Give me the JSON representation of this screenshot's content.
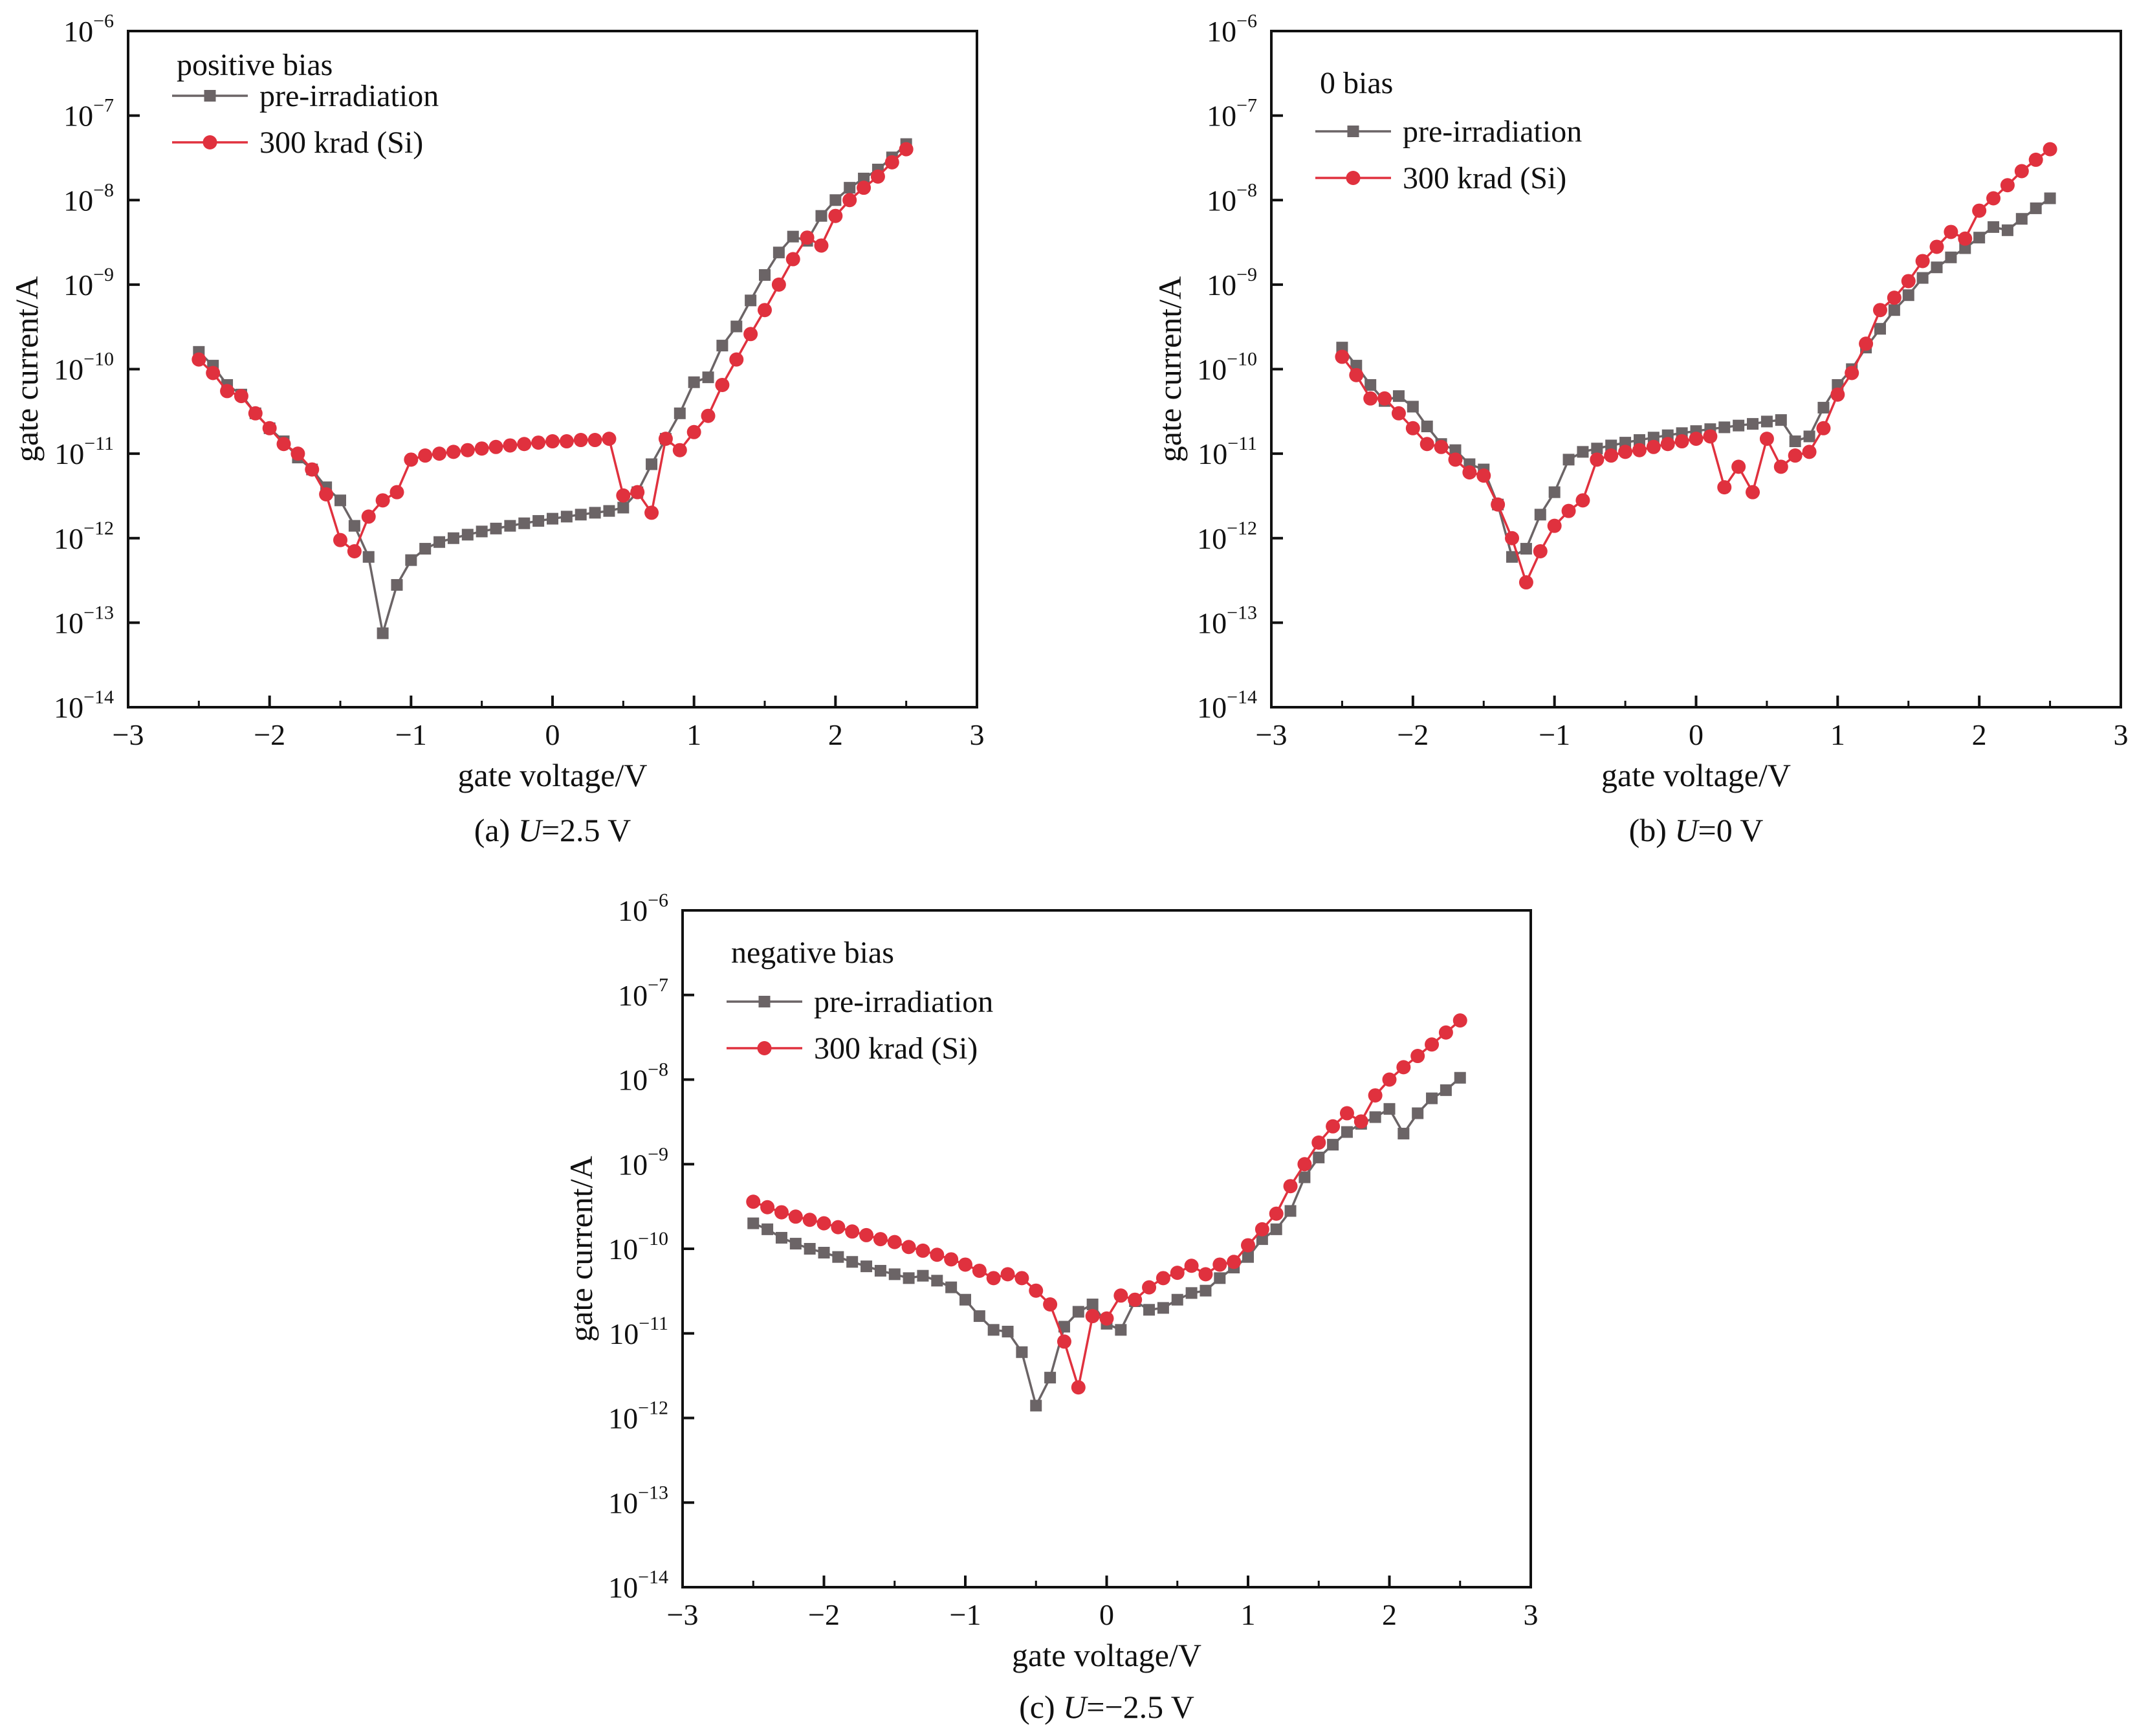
{
  "figure": {
    "x_axis_label": "gate voltage/V",
    "y_axis_label": "gate current/A"
  },
  "legend": {
    "series_names": [
      "pre-irradiation",
      "300 krad (Si)"
    ]
  },
  "colors": {
    "pre_irradiation": "#6b6466",
    "irradiated": "#e0313e",
    "axis": "#111111"
  },
  "marker_shapes": {
    "pre_irradiation": "square",
    "irradiated": "circle"
  },
  "chart_data": [
    {
      "type": "line",
      "panel": "a",
      "annotation": "positive bias",
      "caption": {
        "prefix": "(a) ",
        "var": "U",
        "suffix": "=2.5 V"
      },
      "xlabel": "gate voltage/V",
      "ylabel": "gate current/A",
      "xlim": [
        -3,
        3
      ],
      "ylim": [
        1e-14,
        1e-06
      ],
      "yscale": "log",
      "xticks": [
        "−3",
        "−2",
        "−1",
        "0",
        "1",
        "2",
        "3"
      ],
      "yticks_exponent": [
        "−14",
        "−13",
        "−12",
        "−11",
        "−10",
        "−9",
        "−8",
        "−7",
        "−6"
      ],
      "yticks_base": "10",
      "legend_position": "top-left",
      "grid": false,
      "series": [
        {
          "name": "pre-irradiation",
          "x": [
            -2.5,
            -2.4,
            -2.3,
            -2.2,
            -2.1,
            -2.0,
            -1.9,
            -1.8,
            -1.7,
            -1.6,
            -1.5,
            -1.4,
            -1.3,
            -1.2,
            -1.1,
            -1.0,
            -0.9,
            -0.8,
            -0.7,
            -0.6,
            -0.5,
            -0.4,
            -0.3,
            -0.2,
            -0.1,
            0.0,
            0.1,
            0.2,
            0.3,
            0.4,
            0.5,
            0.6,
            0.7,
            0.8,
            0.9,
            1.0,
            1.1,
            1.2,
            1.3,
            1.4,
            1.5,
            1.6,
            1.7,
            1.8,
            1.9,
            2.0,
            2.1,
            2.2,
            2.3,
            2.4,
            2.5
          ],
          "y": [
            1.6e-10,
            1.1e-10,
            6.5e-11,
            5e-11,
            3e-11,
            2e-11,
            1.4e-11,
            9e-12,
            6.5e-12,
            4e-12,
            2.8e-12,
            1.4e-12,
            6e-13,
            7.5e-14,
            2.8e-13,
            5.5e-13,
            7.5e-13,
            9e-13,
            1e-12,
            1.1e-12,
            1.2e-12,
            1.3e-12,
            1.4e-12,
            1.5e-12,
            1.6e-12,
            1.7e-12,
            1.8e-12,
            1.9e-12,
            2e-12,
            2.1e-12,
            2.3e-12,
            3.5e-12,
            7.5e-12,
            1.5e-11,
            3e-11,
            7e-11,
            8e-11,
            1.9e-10,
            3.2e-10,
            6.5e-10,
            1.3e-09,
            2.4e-09,
            3.7e-09,
            3.3e-09,
            6.5e-09,
            1e-08,
            1.4e-08,
            1.8e-08,
            2.3e-08,
            3.2e-08,
            4.6e-08
          ]
        },
        {
          "name": "300 krad (Si)",
          "x": [
            -2.5,
            -2.4,
            -2.3,
            -2.2,
            -2.1,
            -2.0,
            -1.9,
            -1.8,
            -1.7,
            -1.6,
            -1.5,
            -1.4,
            -1.3,
            -1.2,
            -1.1,
            -1.0,
            -0.9,
            -0.8,
            -0.7,
            -0.6,
            -0.5,
            -0.4,
            -0.3,
            -0.2,
            -0.1,
            0.0,
            0.1,
            0.2,
            0.3,
            0.4,
            0.5,
            0.6,
            0.7,
            0.8,
            0.9,
            1.0,
            1.1,
            1.2,
            1.3,
            1.4,
            1.5,
            1.6,
            1.7,
            1.8,
            1.9,
            2.0,
            2.1,
            2.2,
            2.3,
            2.4,
            2.5
          ],
          "y": [
            1.3e-10,
            9e-11,
            5.5e-11,
            4.8e-11,
            3e-11,
            2e-11,
            1.3e-11,
            1e-11,
            6.5e-12,
            3.3e-12,
            9.5e-13,
            7e-13,
            1.8e-12,
            2.8e-12,
            3.5e-12,
            8.5e-12,
            9.5e-12,
            1e-11,
            1.05e-11,
            1.1e-11,
            1.15e-11,
            1.2e-11,
            1.25e-11,
            1.3e-11,
            1.35e-11,
            1.4e-11,
            1.4e-11,
            1.45e-11,
            1.45e-11,
            1.5e-11,
            3.2e-12,
            3.5e-12,
            2e-12,
            1.5e-11,
            1.1e-11,
            1.8e-11,
            2.8e-11,
            6.5e-11,
            1.3e-10,
            2.6e-10,
            5e-10,
            1e-09,
            2e-09,
            3.6e-09,
            2.9e-09,
            6.5e-09,
            1e-08,
            1.4e-08,
            1.9e-08,
            2.8e-08,
            4e-08
          ]
        }
      ]
    },
    {
      "type": "line",
      "panel": "b",
      "annotation": "0 bias",
      "caption": {
        "prefix": "(b) ",
        "var": "U",
        "suffix": "=0 V"
      },
      "xlabel": "gate voltage/V",
      "ylabel": "gate current/A",
      "xlim": [
        -3,
        3
      ],
      "ylim": [
        1e-14,
        1e-06
      ],
      "yscale": "log",
      "xticks": [
        "−3",
        "−2",
        "−1",
        "0",
        "1",
        "2",
        "3"
      ],
      "yticks_exponent": [
        "−14",
        "−13",
        "−12",
        "−11",
        "−10",
        "−9",
        "−8",
        "−7",
        "−6"
      ],
      "yticks_base": "10",
      "legend_position": "top-left",
      "grid": false,
      "series": [
        {
          "name": "pre-irradiation",
          "x": [
            -2.5,
            -2.4,
            -2.3,
            -2.2,
            -2.1,
            -2.0,
            -1.9,
            -1.8,
            -1.7,
            -1.6,
            -1.5,
            -1.4,
            -1.3,
            -1.2,
            -1.1,
            -1.0,
            -0.9,
            -0.8,
            -0.7,
            -0.6,
            -0.5,
            -0.4,
            -0.3,
            -0.2,
            -0.1,
            0.0,
            0.1,
            0.2,
            0.3,
            0.4,
            0.5,
            0.6,
            0.7,
            0.8,
            0.9,
            1.0,
            1.1,
            1.2,
            1.3,
            1.4,
            1.5,
            1.6,
            1.7,
            1.8,
            1.9,
            2.0,
            2.1,
            2.2,
            2.3,
            2.4,
            2.5
          ],
          "y": [
            1.8e-10,
            1.1e-10,
            6.5e-11,
            4.2e-11,
            4.8e-11,
            3.6e-11,
            2.1e-11,
            1.3e-11,
            1.1e-11,
            7.5e-12,
            6.5e-12,
            2.5e-12,
            6e-13,
            7.5e-13,
            1.9e-12,
            3.5e-12,
            8.5e-12,
            1.05e-11,
            1.15e-11,
            1.25e-11,
            1.35e-11,
            1.45e-11,
            1.55e-11,
            1.65e-11,
            1.75e-11,
            1.85e-11,
            1.95e-11,
            2.05e-11,
            2.15e-11,
            2.25e-11,
            2.4e-11,
            2.5e-11,
            1.4e-11,
            1.6e-11,
            3.5e-11,
            6.5e-11,
            1e-10,
            1.8e-10,
            3e-10,
            5e-10,
            7.5e-10,
            1.2e-09,
            1.6e-09,
            2.1e-09,
            2.7e-09,
            3.6e-09,
            4.8e-09,
            4.4e-09,
            6e-09,
            8e-09,
            1.05e-08
          ]
        },
        {
          "name": "300 krad (Si)",
          "x": [
            -2.5,
            -2.4,
            -2.3,
            -2.2,
            -2.1,
            -2.0,
            -1.9,
            -1.8,
            -1.7,
            -1.6,
            -1.5,
            -1.4,
            -1.3,
            -1.2,
            -1.1,
            -1.0,
            -0.9,
            -0.8,
            -0.7,
            -0.6,
            -0.5,
            -0.4,
            -0.3,
            -0.2,
            -0.1,
            0.0,
            0.1,
            0.2,
            0.3,
            0.4,
            0.5,
            0.6,
            0.7,
            0.8,
            0.9,
            1.0,
            1.1,
            1.2,
            1.3,
            1.4,
            1.5,
            1.6,
            1.7,
            1.8,
            1.9,
            2.0,
            2.1,
            2.2,
            2.3,
            2.4,
            2.5
          ],
          "y": [
            1.4e-10,
            8.5e-11,
            4.5e-11,
            4.5e-11,
            3e-11,
            2e-11,
            1.3e-11,
            1.2e-11,
            8.5e-12,
            6e-12,
            5.5e-12,
            2.5e-12,
            1e-12,
            3e-13,
            7e-13,
            1.4e-12,
            2.1e-12,
            2.8e-12,
            8.5e-12,
            9.5e-12,
            1.05e-11,
            1.1e-11,
            1.2e-11,
            1.3e-11,
            1.4e-11,
            1.5e-11,
            1.6e-11,
            4e-12,
            7e-12,
            3.5e-12,
            1.5e-11,
            7e-12,
            9.5e-12,
            1.05e-11,
            2e-11,
            5e-11,
            9e-11,
            2e-10,
            5e-10,
            7e-10,
            1.1e-09,
            1.9e-09,
            2.8e-09,
            4.2e-09,
            3.5e-09,
            7.5e-09,
            1.05e-08,
            1.5e-08,
            2.2e-08,
            3e-08,
            4e-08
          ]
        }
      ]
    },
    {
      "type": "line",
      "panel": "c",
      "annotation": "negative bias",
      "caption": {
        "prefix": "(c) ",
        "var": "U",
        "suffix": "=−2.5 V"
      },
      "xlabel": "gate voltage/V",
      "ylabel": "gate current/A",
      "xlim": [
        -3,
        3
      ],
      "ylim": [
        1e-14,
        1e-06
      ],
      "yscale": "log",
      "xticks": [
        "−3",
        "−2",
        "−1",
        "0",
        "1",
        "2",
        "3"
      ],
      "yticks_exponent": [
        "−14",
        "−13",
        "−12",
        "−11",
        "−10",
        "−9",
        "−8",
        "−7",
        "−6"
      ],
      "yticks_base": "10",
      "legend_position": "top-left",
      "grid": false,
      "series": [
        {
          "name": "pre-irradiation",
          "x": [
            -2.5,
            -2.4,
            -2.3,
            -2.2,
            -2.1,
            -2.0,
            -1.9,
            -1.8,
            -1.7,
            -1.6,
            -1.5,
            -1.4,
            -1.3,
            -1.2,
            -1.1,
            -1.0,
            -0.9,
            -0.8,
            -0.7,
            -0.6,
            -0.5,
            -0.4,
            -0.3,
            -0.2,
            -0.1,
            0.0,
            0.1,
            0.2,
            0.3,
            0.4,
            0.5,
            0.6,
            0.7,
            0.8,
            0.9,
            1.0,
            1.1,
            1.2,
            1.3,
            1.4,
            1.5,
            1.6,
            1.7,
            1.8,
            1.9,
            2.0,
            2.1,
            2.2,
            2.3,
            2.4,
            2.5
          ],
          "y": [
            2e-10,
            1.7e-10,
            1.35e-10,
            1.15e-10,
            1e-10,
            9e-11,
            8e-11,
            7e-11,
            6.2e-11,
            5.5e-11,
            5e-11,
            4.5e-11,
            4.8e-11,
            4.2e-11,
            3.5e-11,
            2.5e-11,
            1.6e-11,
            1.1e-11,
            1.05e-11,
            6e-12,
            1.4e-12,
            3e-12,
            1.2e-11,
            1.8e-11,
            2.2e-11,
            1.3e-11,
            1.1e-11,
            2.4e-11,
            1.9e-11,
            2e-11,
            2.5e-11,
            3e-11,
            3.2e-11,
            4.5e-11,
            6e-11,
            8e-11,
            1.3e-10,
            1.7e-10,
            2.8e-10,
            7e-10,
            1.2e-09,
            1.7e-09,
            2.4e-09,
            3e-09,
            3.6e-09,
            4.5e-09,
            2.3e-09,
            4e-09,
            6e-09,
            7.5e-09,
            1.05e-08
          ]
        },
        {
          "name": "300 krad (Si)",
          "x": [
            -2.5,
            -2.4,
            -2.3,
            -2.2,
            -2.1,
            -2.0,
            -1.9,
            -1.8,
            -1.7,
            -1.6,
            -1.5,
            -1.4,
            -1.3,
            -1.2,
            -1.1,
            -1.0,
            -0.9,
            -0.8,
            -0.7,
            -0.6,
            -0.5,
            -0.4,
            -0.3,
            -0.2,
            -0.1,
            0.0,
            0.1,
            0.2,
            0.3,
            0.4,
            0.5,
            0.6,
            0.7,
            0.8,
            0.9,
            1.0,
            1.1,
            1.2,
            1.3,
            1.4,
            1.5,
            1.6,
            1.7,
            1.8,
            1.9,
            2.0,
            2.1,
            2.2,
            2.3,
            2.4,
            2.5
          ],
          "y": [
            3.6e-10,
            3.1e-10,
            2.7e-10,
            2.4e-10,
            2.2e-10,
            2e-10,
            1.8e-10,
            1.6e-10,
            1.45e-10,
            1.3e-10,
            1.2e-10,
            1.05e-10,
            9.5e-11,
            8.5e-11,
            7.5e-11,
            6.5e-11,
            5.5e-11,
            4.5e-11,
            5e-11,
            4.5e-11,
            3.2e-11,
            2.2e-11,
            8e-12,
            2.3e-12,
            1.6e-11,
            1.5e-11,
            2.8e-11,
            2.5e-11,
            3.5e-11,
            4.5e-11,
            5.2e-11,
            6.3e-11,
            5e-11,
            6.5e-11,
            7e-11,
            1.1e-10,
            1.7e-10,
            2.6e-10,
            5.5e-10,
            1e-09,
            1.8e-09,
            2.8e-09,
            4e-09,
            3.2e-09,
            6.5e-09,
            1e-08,
            1.4e-08,
            1.9e-08,
            2.6e-08,
            3.6e-08,
            5e-08
          ]
        }
      ]
    }
  ]
}
